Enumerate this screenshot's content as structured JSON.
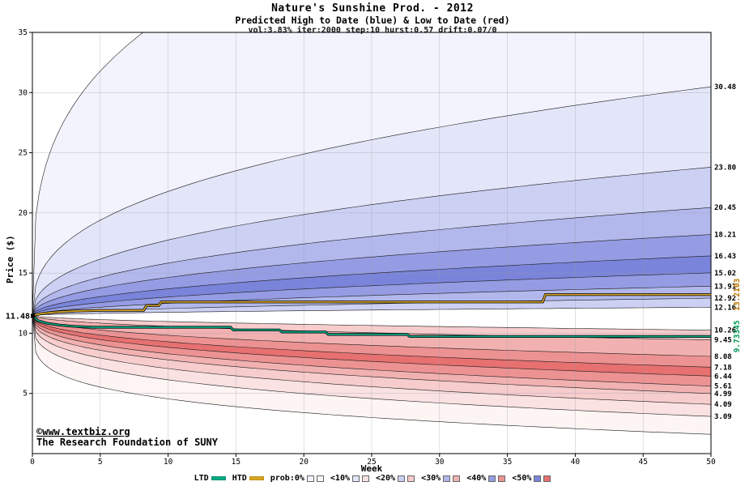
{
  "title": {
    "line1": "Nature's Sunshine Prod. - 2012",
    "line2": "Predicted High to Date (blue) & Low to Date (red)",
    "line3": "vol:3.83% iter:2000 step:10 hurst:0.57 drift:0.07/0"
  },
  "watermark": {
    "line1": "©www.textbiz.org",
    "line2": "The Research Foundation of SUNY",
    "color": "#0000bb"
  },
  "chart_data": {
    "type": "area",
    "title": "Nature's Sunshine Prod. - 2012",
    "xlabel": "Week",
    "ylabel": "Price ($)",
    "xlim": [
      0,
      50
    ],
    "ylim": [
      0,
      35
    ],
    "x_ticks": [
      0,
      5,
      10,
      15,
      20,
      25,
      30,
      35,
      40,
      45,
      50
    ],
    "y_ticks": [
      5,
      10,
      15,
      20,
      25,
      30,
      35
    ],
    "grid": true,
    "start_price": 11.48,
    "start_label": "11.48",
    "high_boundaries": [
      {
        "end": 52.0,
        "p": 0.3,
        "label": ""
      },
      {
        "end": 30.48,
        "p": 0.38,
        "label": "30.48"
      },
      {
        "end": 23.8,
        "p": 0.42,
        "label": "23.80"
      },
      {
        "end": 20.45,
        "p": 0.45,
        "label": "20.45"
      },
      {
        "end": 18.21,
        "p": 0.47,
        "label": "18.21"
      },
      {
        "end": 16.43,
        "p": 0.5,
        "label": "16.43"
      },
      {
        "end": 15.02,
        "p": 0.52,
        "label": "15.02"
      },
      {
        "end": 13.91,
        "p": 0.55,
        "label": "13.91"
      },
      {
        "end": 12.92,
        "p": 0.58,
        "label": "12.92"
      },
      {
        "end": 12.16,
        "p": 0.6,
        "label": "12.16"
      }
    ],
    "low_boundaries": [
      {
        "end": 1.6,
        "p": 0.22,
        "label": ""
      },
      {
        "end": 3.09,
        "p": 0.28,
        "label": "3.09"
      },
      {
        "end": 4.09,
        "p": 0.32,
        "label": "4.09"
      },
      {
        "end": 4.99,
        "p": 0.35,
        "label": "4.99"
      },
      {
        "end": 5.61,
        "p": 0.38,
        "label": "5.61"
      },
      {
        "end": 6.44,
        "p": 0.4,
        "label": "6.44"
      },
      {
        "end": 7.18,
        "p": 0.42,
        "label": "7.18"
      },
      {
        "end": 8.08,
        "p": 0.45,
        "label": "8.08"
      },
      {
        "end": 9.45,
        "p": 0.5,
        "label": "9.45"
      },
      {
        "end": 10.26,
        "p": 0.55,
        "label": "10.26"
      }
    ],
    "band_color_index": [
      0,
      1,
      2,
      3,
      4,
      5,
      4,
      3,
      2
    ],
    "palette_blue": [
      "#f2f3fc",
      "#e3e5f9",
      "#ccd0f3",
      "#b2b8ec",
      "#959ce3",
      "#7a84da"
    ],
    "palette_red": [
      "#fdf4f4",
      "#fae2e2",
      "#f6cccc",
      "#f2b1b1",
      "#ed9292",
      "#e77070"
    ],
    "htd_line": {
      "color": "#d9a520",
      "label_color": "#bb7700",
      "value_label": "13.2103",
      "points": [
        [
          0,
          11.48
        ],
        [
          0.6,
          11.62
        ],
        [
          1.5,
          11.74
        ],
        [
          3,
          11.84
        ],
        [
          5,
          11.9
        ],
        [
          8.2,
          11.9
        ],
        [
          8.4,
          12.3
        ],
        [
          9.3,
          12.3
        ],
        [
          9.5,
          12.6
        ],
        [
          37.6,
          12.6
        ],
        [
          37.8,
          13.21
        ],
        [
          50,
          13.21
        ]
      ]
    },
    "ltd_line": {
      "color": "#00a884",
      "label_color": "#009955",
      "value_label": "9.73345",
      "points": [
        [
          0,
          11.48
        ],
        [
          0.4,
          11.05
        ],
        [
          1,
          10.85
        ],
        [
          2,
          10.68
        ],
        [
          3,
          10.58
        ],
        [
          4.5,
          10.5
        ],
        [
          14.6,
          10.5
        ],
        [
          14.8,
          10.28
        ],
        [
          18.2,
          10.28
        ],
        [
          18.4,
          10.1
        ],
        [
          21.6,
          10.1
        ],
        [
          21.8,
          9.9
        ],
        [
          27.6,
          9.9
        ],
        [
          27.8,
          9.73
        ],
        [
          50,
          9.73
        ]
      ]
    },
    "legend": [
      {
        "label": "LTD",
        "type": "line",
        "color": "#00a884"
      },
      {
        "label": "HTD",
        "type": "line",
        "color": "#d9a520"
      },
      {
        "label": "prob:0%",
        "type": "band",
        "index": 0
      },
      {
        "label": "<10%",
        "type": "band",
        "index": 1
      },
      {
        "label": "<20%",
        "type": "band",
        "index": 2
      },
      {
        "label": "<30%",
        "type": "band",
        "index": 3
      },
      {
        "label": "<40%",
        "type": "band",
        "index": 4
      },
      {
        "label": "<50%",
        "type": "band",
        "index": 5
      }
    ]
  }
}
